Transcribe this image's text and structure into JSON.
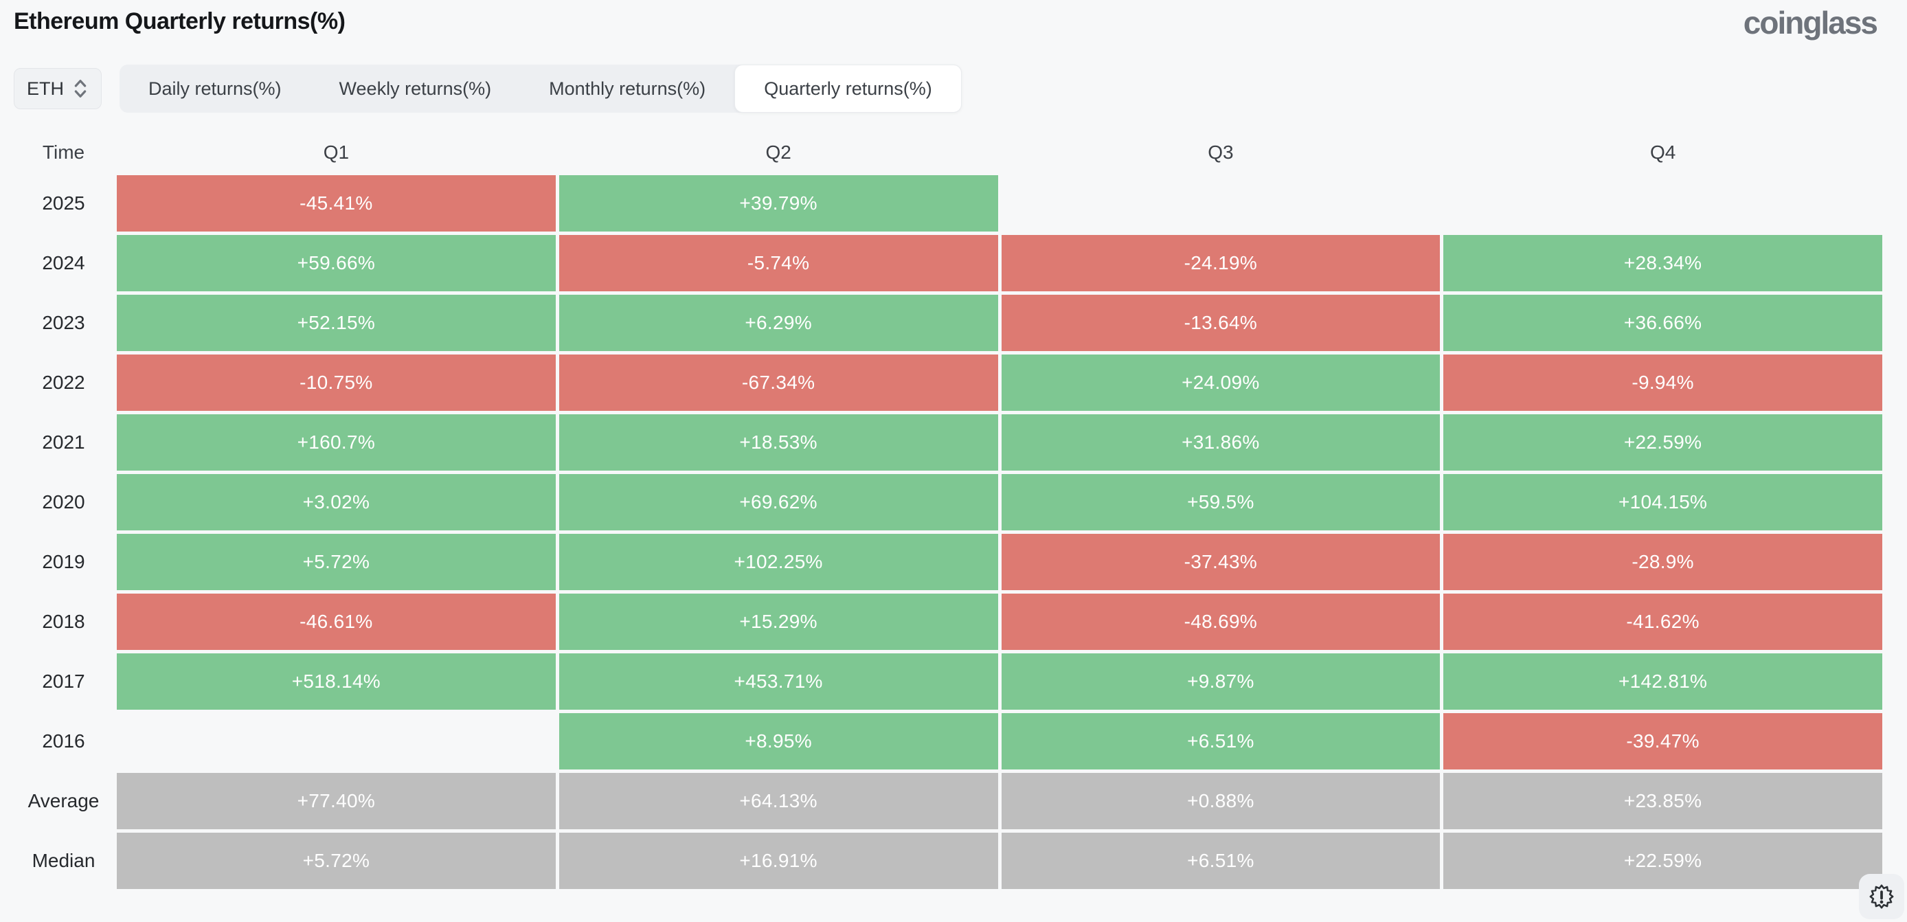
{
  "header": {
    "title": "Ethereum Quarterly returns(%)",
    "logo_text": "coinglass"
  },
  "controls": {
    "coin_selector": {
      "value": "ETH",
      "icon": "chevron-up-down"
    },
    "tabs": [
      {
        "label": "Daily returns(%)",
        "active": false
      },
      {
        "label": "Weekly returns(%)",
        "active": false
      },
      {
        "label": "Monthly returns(%)",
        "active": false
      },
      {
        "label": "Quarterly returns(%)",
        "active": true
      }
    ]
  },
  "chart_data": {
    "type": "table",
    "title": "Ethereum Quarterly returns(%)",
    "columns": [
      "Time",
      "Q1",
      "Q2",
      "Q3",
      "Q4"
    ],
    "rows": [
      {
        "label": "2025",
        "summary": false,
        "values": [
          "-45.41%",
          "+39.79%",
          "",
          ""
        ]
      },
      {
        "label": "2024",
        "summary": false,
        "values": [
          "+59.66%",
          "-5.74%",
          "-24.19%",
          "+28.34%"
        ]
      },
      {
        "label": "2023",
        "summary": false,
        "values": [
          "+52.15%",
          "+6.29%",
          "-13.64%",
          "+36.66%"
        ]
      },
      {
        "label": "2022",
        "summary": false,
        "values": [
          "-10.75%",
          "-67.34%",
          "+24.09%",
          "-9.94%"
        ]
      },
      {
        "label": "2021",
        "summary": false,
        "values": [
          "+160.7%",
          "+18.53%",
          "+31.86%",
          "+22.59%"
        ]
      },
      {
        "label": "2020",
        "summary": false,
        "values": [
          "+3.02%",
          "+69.62%",
          "+59.5%",
          "+104.15%"
        ]
      },
      {
        "label": "2019",
        "summary": false,
        "values": [
          "+5.72%",
          "+102.25%",
          "-37.43%",
          "-28.9%"
        ]
      },
      {
        "label": "2018",
        "summary": false,
        "values": [
          "-46.61%",
          "+15.29%",
          "-48.69%",
          "-41.62%"
        ]
      },
      {
        "label": "2017",
        "summary": false,
        "values": [
          "+518.14%",
          "+453.71%",
          "+9.87%",
          "+142.81%"
        ]
      },
      {
        "label": "2016",
        "summary": false,
        "values": [
          "",
          "+8.95%",
          "+6.51%",
          "-39.47%"
        ]
      },
      {
        "label": "Average",
        "summary": true,
        "values": [
          "+77.40%",
          "+64.13%",
          "+0.88%",
          "+23.85%"
        ]
      },
      {
        "label": "Median",
        "summary": true,
        "values": [
          "+5.72%",
          "+16.91%",
          "+6.51%",
          "+22.59%"
        ]
      }
    ],
    "colors": {
      "positive": "#7ec792",
      "negative": "#dd7a72",
      "summary": "#bebebe"
    },
    "grid": false,
    "legend_position": "none"
  },
  "floating_button": {
    "icon": "seal-exclamation"
  }
}
